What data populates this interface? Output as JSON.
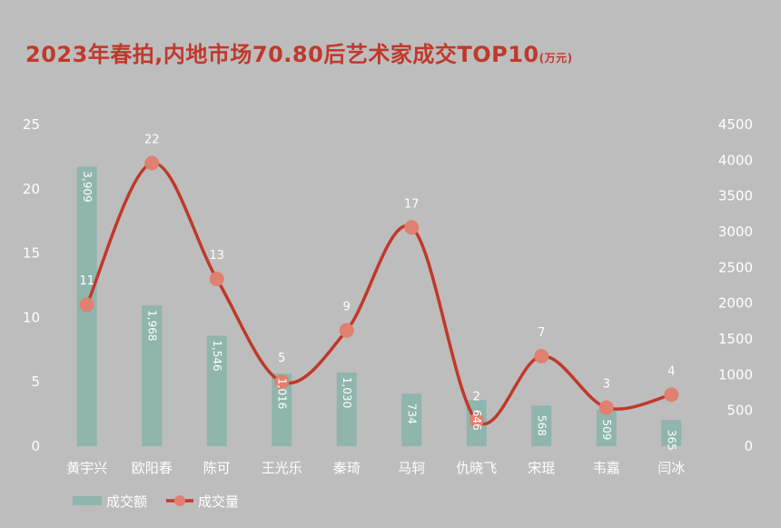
{
  "chart_data": {
    "type": "bar",
    "title": "2023年春拍,内地市场70.80后艺术家成交TOP10",
    "title_unit": "(万元)",
    "categories": [
      "黄宇兴",
      "欧阳春",
      "陈可",
      "王光乐",
      "秦琦",
      "马轲",
      "仇晓飞",
      "宋琨",
      "韦嘉",
      "闫冰"
    ],
    "series": [
      {
        "name": "成交额",
        "chart_type": "bar",
        "axis": "right",
        "color": "#8fb5ad",
        "values": [
          3909,
          1968,
          1546,
          1016,
          1030,
          734,
          646,
          568,
          509,
          365
        ],
        "labels": [
          "3,909",
          "1,968",
          "1,546",
          "1,016",
          "1,030",
          "734",
          "646",
          "568",
          "509",
          "365"
        ]
      },
      {
        "name": "成交量",
        "chart_type": "line",
        "axis": "left",
        "color": "#c0392b",
        "marker_color": "#e08070",
        "values": [
          11,
          22,
          13,
          5,
          9,
          17,
          2,
          7,
          3,
          4
        ]
      }
    ],
    "left_axis": {
      "ylim": [
        0,
        25
      ],
      "ticks": [
        "0",
        "5",
        "10",
        "15",
        "20",
        "25"
      ]
    },
    "right_axis": {
      "ylim": [
        0,
        4500
      ],
      "ticks": [
        "0",
        "500",
        "1000",
        "1500",
        "2000",
        "2500",
        "3000",
        "3500",
        "4000",
        "4500"
      ]
    },
    "grid": false,
    "legend": "bottom-left"
  }
}
